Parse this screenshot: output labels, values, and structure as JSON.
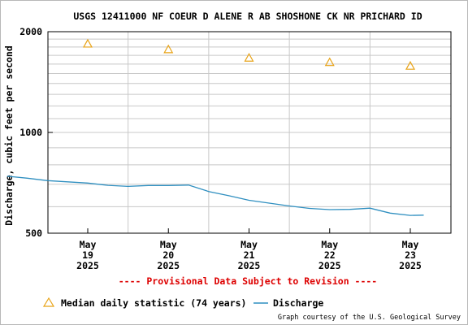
{
  "chart_data": {
    "type": "line",
    "title": "USGS 12411000 NF COEUR D ALENE R AB SHOSHONE CK NR PRICHARD ID",
    "ylabel": "Discharge, cubic feet per second",
    "ylim": [
      500,
      2000
    ],
    "y_scale": "log",
    "y_ticks": [
      "500",
      "1000",
      "2000"
    ],
    "x_ticks": [
      {
        "month": "May",
        "day": "19",
        "year": "2025"
      },
      {
        "month": "May",
        "day": "20",
        "year": "2025"
      },
      {
        "month": "May",
        "day": "21",
        "year": "2025"
      },
      {
        "month": "May",
        "day": "22",
        "year": "2025"
      },
      {
        "month": "May",
        "day": "23",
        "year": "2025"
      }
    ],
    "grid": true,
    "legend_position": "bottom",
    "series": [
      {
        "name": "Discharge",
        "type": "line",
        "color": "#2f8fc0",
        "points": [
          [
            "2025-05-18 12:00",
            740
          ],
          [
            "2025-05-18 18:00",
            730
          ],
          [
            "2025-05-19 00:00",
            718
          ],
          [
            "2025-05-19 06:00",
            712
          ],
          [
            "2025-05-19 12:00",
            706
          ],
          [
            "2025-05-19 18:00",
            695
          ],
          [
            "2025-05-20 00:00",
            690
          ],
          [
            "2025-05-20 06:00",
            694
          ],
          [
            "2025-05-20 12:00",
            694
          ],
          [
            "2025-05-20 18:00",
            696
          ],
          [
            "2025-05-21 00:00",
            666
          ],
          [
            "2025-05-21 06:00",
            647
          ],
          [
            "2025-05-21 12:00",
            627
          ],
          [
            "2025-05-21 18:00",
            615
          ],
          [
            "2025-05-22 00:00",
            603
          ],
          [
            "2025-05-22 06:00",
            593
          ],
          [
            "2025-05-22 12:00",
            588
          ],
          [
            "2025-05-22 18:00",
            589
          ],
          [
            "2025-05-23 00:00",
            594
          ],
          [
            "2025-05-23 06:00",
            574
          ],
          [
            "2025-05-23 12:00",
            565
          ],
          [
            "2025-05-23 16:00",
            566
          ]
        ]
      },
      {
        "name": "Median daily statistic (74 years)",
        "type": "marker",
        "marker": "triangle",
        "color": "#e8a317",
        "points": [
          [
            "2025-05-19 12:00",
            1840
          ],
          [
            "2025-05-20 12:00",
            1770
          ],
          [
            "2025-05-21 12:00",
            1670
          ],
          [
            "2025-05-22 12:00",
            1620
          ],
          [
            "2025-05-23 12:00",
            1580
          ]
        ]
      }
    ],
    "annotations": {
      "provisional": "---- Provisional Data Subject to Revision ----",
      "credit": "Graph courtesy of the U.S. Geological Survey"
    }
  }
}
